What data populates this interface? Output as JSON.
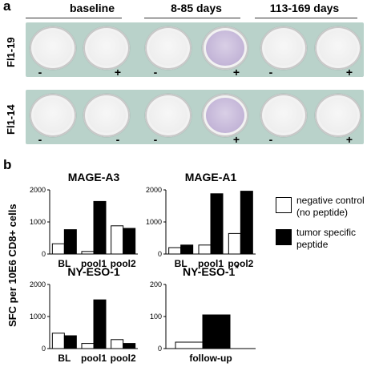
{
  "panel_a": {
    "letter": "a",
    "time_groups": [
      "baseline",
      "8-85 days",
      "113-169 days"
    ],
    "rows": [
      {
        "label": "Fl1-19",
        "signs": [
          "-",
          "+",
          "-",
          "+",
          "-",
          "+"
        ],
        "positive_well": 3
      },
      {
        "label": "Fl1-14",
        "signs": [
          "-",
          "-",
          "-",
          "+",
          "-",
          "+"
        ],
        "positive_well": 3
      }
    ]
  },
  "panel_b": {
    "letter": "b",
    "ylabel": "SFC per 10E6 CD8+ cells",
    "legend": {
      "negative": "negative control\n(no peptide)",
      "positive": "tumor specific\npeptide"
    },
    "colors": {
      "negative": "#ffffff",
      "positive": "#000000"
    }
  },
  "chart_data": [
    {
      "type": "bar",
      "title": "MAGE-A3",
      "categories": [
        "BL",
        "pool1",
        "pool2"
      ],
      "series": [
        {
          "values": [
            320,
            80,
            880
          ]
        },
        {
          "values": [
            760,
            1640,
            800
          ]
        }
      ],
      "ylim": [
        0,
        2000
      ],
      "yticks": [
        0,
        1000,
        2000
      ]
    },
    {
      "type": "bar",
      "title": "MAGE-A1",
      "categories": [
        "BL",
        "pool1",
        "pool2"
      ],
      "series": [
        {
          "values": [
            200,
            280,
            640
          ]
        },
        {
          "values": [
            280,
            1880,
            1960
          ]
        }
      ],
      "ylim": [
        0,
        2000
      ],
      "yticks": [
        0,
        1000,
        2000
      ]
    },
    {
      "type": "bar",
      "title": "NY-ESO-1",
      "categories": [
        "BL",
        "pool1",
        "pool2"
      ],
      "series": [
        {
          "values": [
            480,
            160,
            280
          ]
        },
        {
          "values": [
            400,
            1520,
            160
          ]
        }
      ],
      "ylim": [
        0,
        2000
      ],
      "yticks": [
        0,
        1000,
        2000
      ]
    },
    {
      "type": "bar",
      "title": "NY-ESO-1",
      "title_superscript": "*",
      "categories": [
        "follow-up"
      ],
      "series": [
        {
          "values": [
            20
          ]
        },
        {
          "values": [
            105
          ]
        }
      ],
      "ylim": [
        0,
        200
      ],
      "yticks": [
        0,
        100,
        200
      ]
    }
  ]
}
